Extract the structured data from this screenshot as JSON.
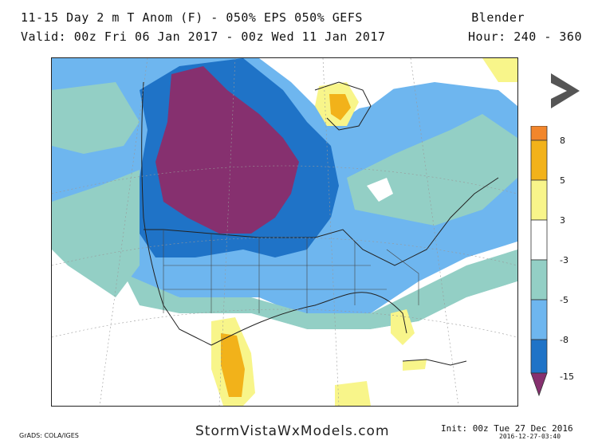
{
  "header": {
    "title": "11-15 Day 2 m T Anom (F) - 050% EPS 050% GEFS",
    "valid": "Valid: 00z Fri 06 Jan 2017 - 00z Wed 11 Jan 2017",
    "model": "Blender",
    "hour": "Hour: 240 - 360"
  },
  "nav": {
    "next_icon": "chevron-right-icon"
  },
  "color_scale": {
    "ticks": [
      "8",
      "5",
      "3",
      "-3",
      "-5",
      "-8",
      "-15"
    ],
    "colors": {
      "gt8": "#f2862b",
      "5to8": "#f2b21a",
      "3to5": "#f8f58a",
      "neutral": "#ffffff",
      "m3tom5": "#93cfc5",
      "m5tom8": "#6eb6ef",
      "m8tom15": "#1f73c7",
      "lt_m15": "#86306f"
    }
  },
  "footer": {
    "brand": "StormVistaWxModels.com",
    "grads": "GrADS: COLA/IGES",
    "init": "Init: 00z Tue 27 Dec 2016",
    "stamp": "2016-12-27-03:40"
  }
}
